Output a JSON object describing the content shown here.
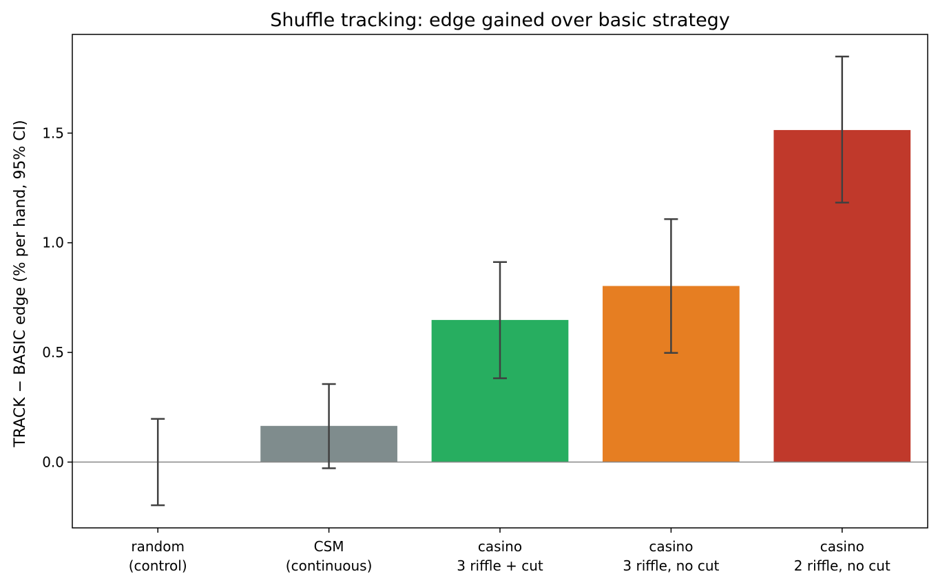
{
  "chart_data": {
    "type": "bar",
    "title": "Shuffle tracking: edge gained over basic strategy",
    "xlabel": "",
    "ylabel": "TRACK − BASIC edge  (% per hand, 95% CI)",
    "ylim": [
      -0.3,
      1.95
    ],
    "yticks": [
      0.0,
      0.5,
      1.0,
      1.5
    ],
    "ytick_labels": [
      "0.0",
      "0.5",
      "1.0",
      "1.5"
    ],
    "categories": [
      [
        "random",
        "(control)"
      ],
      [
        "CSM",
        "(continuous)"
      ],
      [
        "casino",
        "3 riffle + cut"
      ],
      [
        "casino",
        "3 riffle, no cut"
      ],
      [
        "casino",
        "2 riffle, no cut"
      ]
    ],
    "values": [
      0.0,
      0.165,
      0.648,
      0.803,
      1.514
    ],
    "error_low": [
      -0.197,
      -0.028,
      0.382,
      0.498,
      1.183
    ],
    "error_high": [
      0.197,
      0.356,
      0.912,
      1.108,
      1.849
    ],
    "colors": [
      "#7f8c8d",
      "#7f8c8d",
      "#27ae60",
      "#e67e22",
      "#c0392b"
    ],
    "reference_line": 0.0,
    "grid": false,
    "legend": "none"
  }
}
